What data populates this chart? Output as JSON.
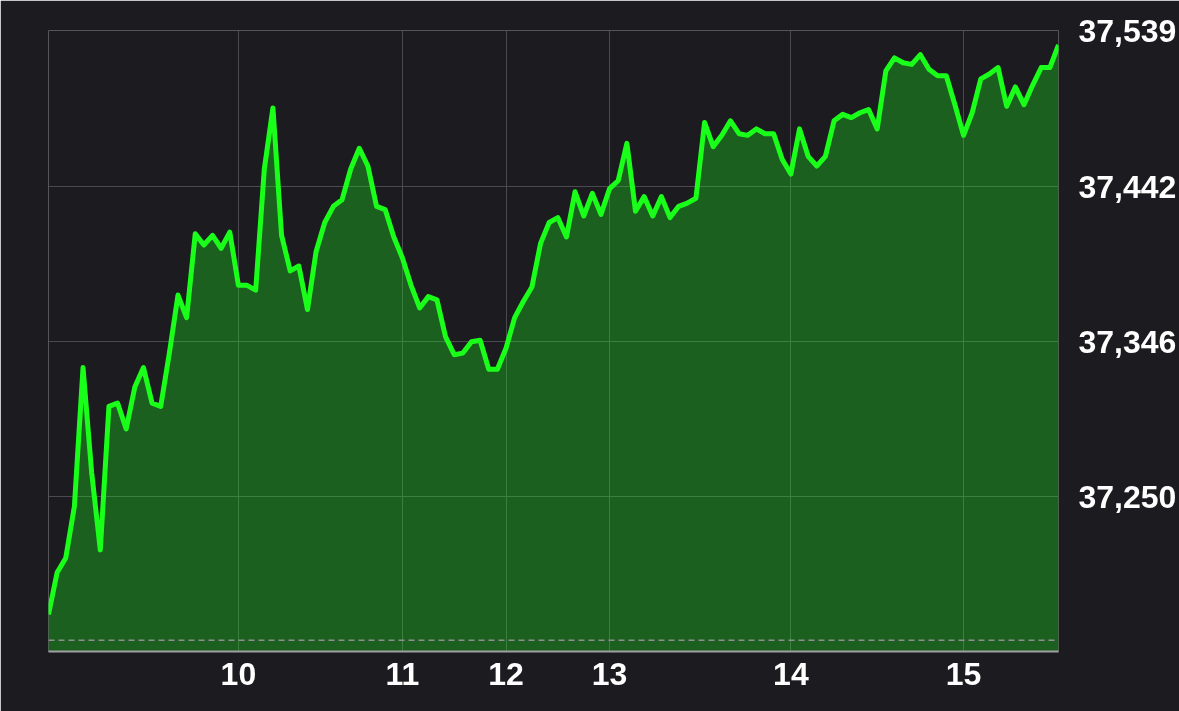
{
  "chart_data": {
    "type": "area",
    "categories": [
      null,
      null,
      null,
      null,
      null,
      null,
      null,
      null,
      null,
      null,
      null,
      null,
      null,
      null,
      null,
      null,
      null,
      null,
      null,
      null,
      null,
      null,
      "10",
      null,
      null,
      null,
      null,
      null,
      null,
      null,
      null,
      null,
      null,
      null,
      null,
      null,
      null,
      null,
      null,
      null,
      null,
      "11",
      null,
      null,
      null,
      null,
      null,
      null,
      null,
      null,
      null,
      null,
      null,
      "12",
      null,
      null,
      null,
      null,
      null,
      null,
      null,
      null,
      null,
      null,
      null,
      "13",
      null,
      null,
      null,
      null,
      null,
      null,
      null,
      null,
      null,
      null,
      null,
      null,
      null,
      null,
      null,
      null,
      null,
      null,
      null,
      null,
      "14",
      null,
      null,
      null,
      null,
      null,
      null,
      null,
      null,
      null,
      null,
      null,
      null,
      null,
      null,
      null,
      null,
      null,
      null,
      null,
      "15",
      null,
      null,
      null,
      null,
      null,
      null,
      null,
      null,
      null,
      null,
      null
    ],
    "series": [
      {
        "color": "#1aff1a",
        "values": [
          37177,
          37203,
          37212,
          37244,
          37330,
          37265,
          37217,
          37306,
          37308,
          37292,
          37318,
          37330,
          37308,
          37306,
          37339,
          37375,
          37361,
          37413,
          37406,
          37412,
          37404,
          37414,
          37381,
          37381,
          37378,
          37453,
          37491,
          37412,
          37390,
          37393,
          37366,
          37402,
          37420,
          37430,
          37434,
          37453,
          37466,
          37455,
          37430,
          37428,
          37411,
          37398,
          37381,
          37367,
          37374,
          37372,
          37349,
          37338,
          37339,
          37346,
          37347,
          37329,
          37329,
          37342,
          37361,
          37371,
          37380,
          37407,
          37420,
          37423,
          37411,
          37439,
          37424,
          37438,
          37425,
          37441,
          37446,
          37469,
          37427,
          37436,
          37424,
          37436,
          37423,
          37430,
          37432,
          37435,
          37482,
          37467,
          37474,
          37483,
          37475,
          37474,
          37478,
          37475,
          37475,
          37459,
          37450,
          37478,
          37461,
          37455,
          37461,
          37483,
          37487,
          37485,
          37488,
          37490,
          37478,
          37514,
          37522,
          37519,
          37518,
          37524,
          37515,
          37511,
          37511,
          37493,
          37474,
          37488,
          37509,
          37512,
          37516,
          37492,
          37504,
          37493,
          37505,
          37516,
          37516,
          37530
        ]
      }
    ],
    "ylim": [
      37154,
      37539
    ],
    "yticks": [
      {
        "value": 37250,
        "label": "37,250"
      },
      {
        "value": 37346,
        "label": "37,346"
      },
      {
        "value": 37442,
        "label": "37,442"
      },
      {
        "value": 37539,
        "label": "37,539"
      }
    ],
    "ref_lines": [
      {
        "axis": "y",
        "value": 37161,
        "color": "#8e8e93",
        "line_style": "dashed"
      }
    ],
    "grid": true
  }
}
